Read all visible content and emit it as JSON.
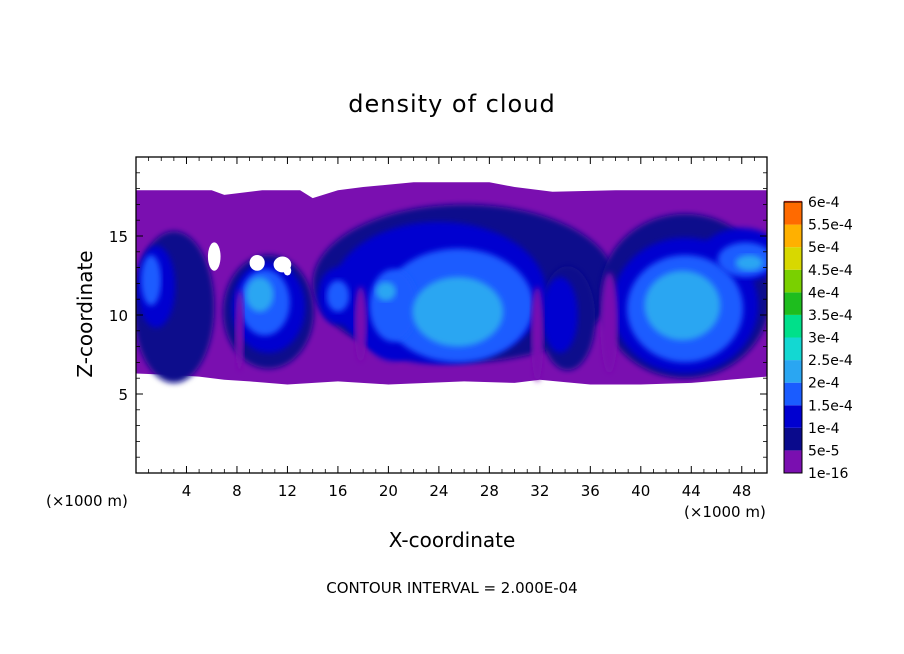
{
  "chart_data": {
    "type": "heatmap",
    "title": "density of cloud",
    "xlabel": "X-coordinate",
    "ylabel": "Z-coordinate",
    "x_unit": "(×1000 m)",
    "x_unit_left": "(×1000 m)",
    "footer": "CONTOUR INTERVAL = 2.000E-04",
    "xlim": [
      0,
      50
    ],
    "ylim": [
      0,
      20
    ],
    "x_ticks": [
      4,
      8,
      12,
      16,
      20,
      24,
      28,
      32,
      36,
      40,
      44,
      48
    ],
    "x_tick_labels": [
      "4",
      "8",
      "12",
      "16",
      "20",
      "24",
      "28",
      "32",
      "36",
      "40",
      "44",
      "48"
    ],
    "y_ticks": [
      5,
      10,
      15
    ],
    "y_tick_labels": [
      "5",
      "10",
      "15"
    ],
    "grid": false,
    "legend": "colorbar-right",
    "colorbar": {
      "levels": [
        "1e-16",
        "5e-5",
        "1e-4",
        "1.5e-4",
        "2e-4",
        "2.5e-4",
        "3e-4",
        "3.5e-4",
        "4e-4",
        "4.5e-4",
        "5e-4",
        "5.5e-4",
        "6e-4"
      ],
      "colors": [
        "#7a0fb0",
        "#0a0a8c",
        "#0000d0",
        "#1a5cff",
        "#2aa6f2",
        "#13d8d2",
        "#00e08a",
        "#1ebd1e",
        "#7ad000",
        "#d8d800",
        "#ffb000",
        "#ff6a00",
        "#ff3020"
      ]
    },
    "cloud_layer_z": [
      6,
      18
    ],
    "field": {
      "background": "#7a0fb0",
      "layers": [
        {
          "level": "5e-5",
          "color": "#0a0a8c",
          "cells": [
            [
              22,
              52
            ],
            [
              26,
              50
            ],
            [
              28,
              44
            ],
            [
              34,
              28
            ]
          ]
        },
        {
          "level": "1e-4",
          "color": "#0000d0",
          "cells": [
            [
              30,
              48
            ],
            [
              32,
              44
            ],
            [
              24,
              40
            ],
            [
              28,
              30
            ]
          ]
        },
        {
          "level": "1.5e-4",
          "color": "#1a5cff",
          "cells": [
            [
              34,
              46
            ],
            [
              30,
              38
            ],
            [
              20,
              26
            ]
          ]
        },
        {
          "level": "2e-4",
          "color": "#2aa6f2",
          "cells": [
            [
              38,
              44
            ],
            [
              32,
              36
            ]
          ]
        }
      ]
    }
  }
}
